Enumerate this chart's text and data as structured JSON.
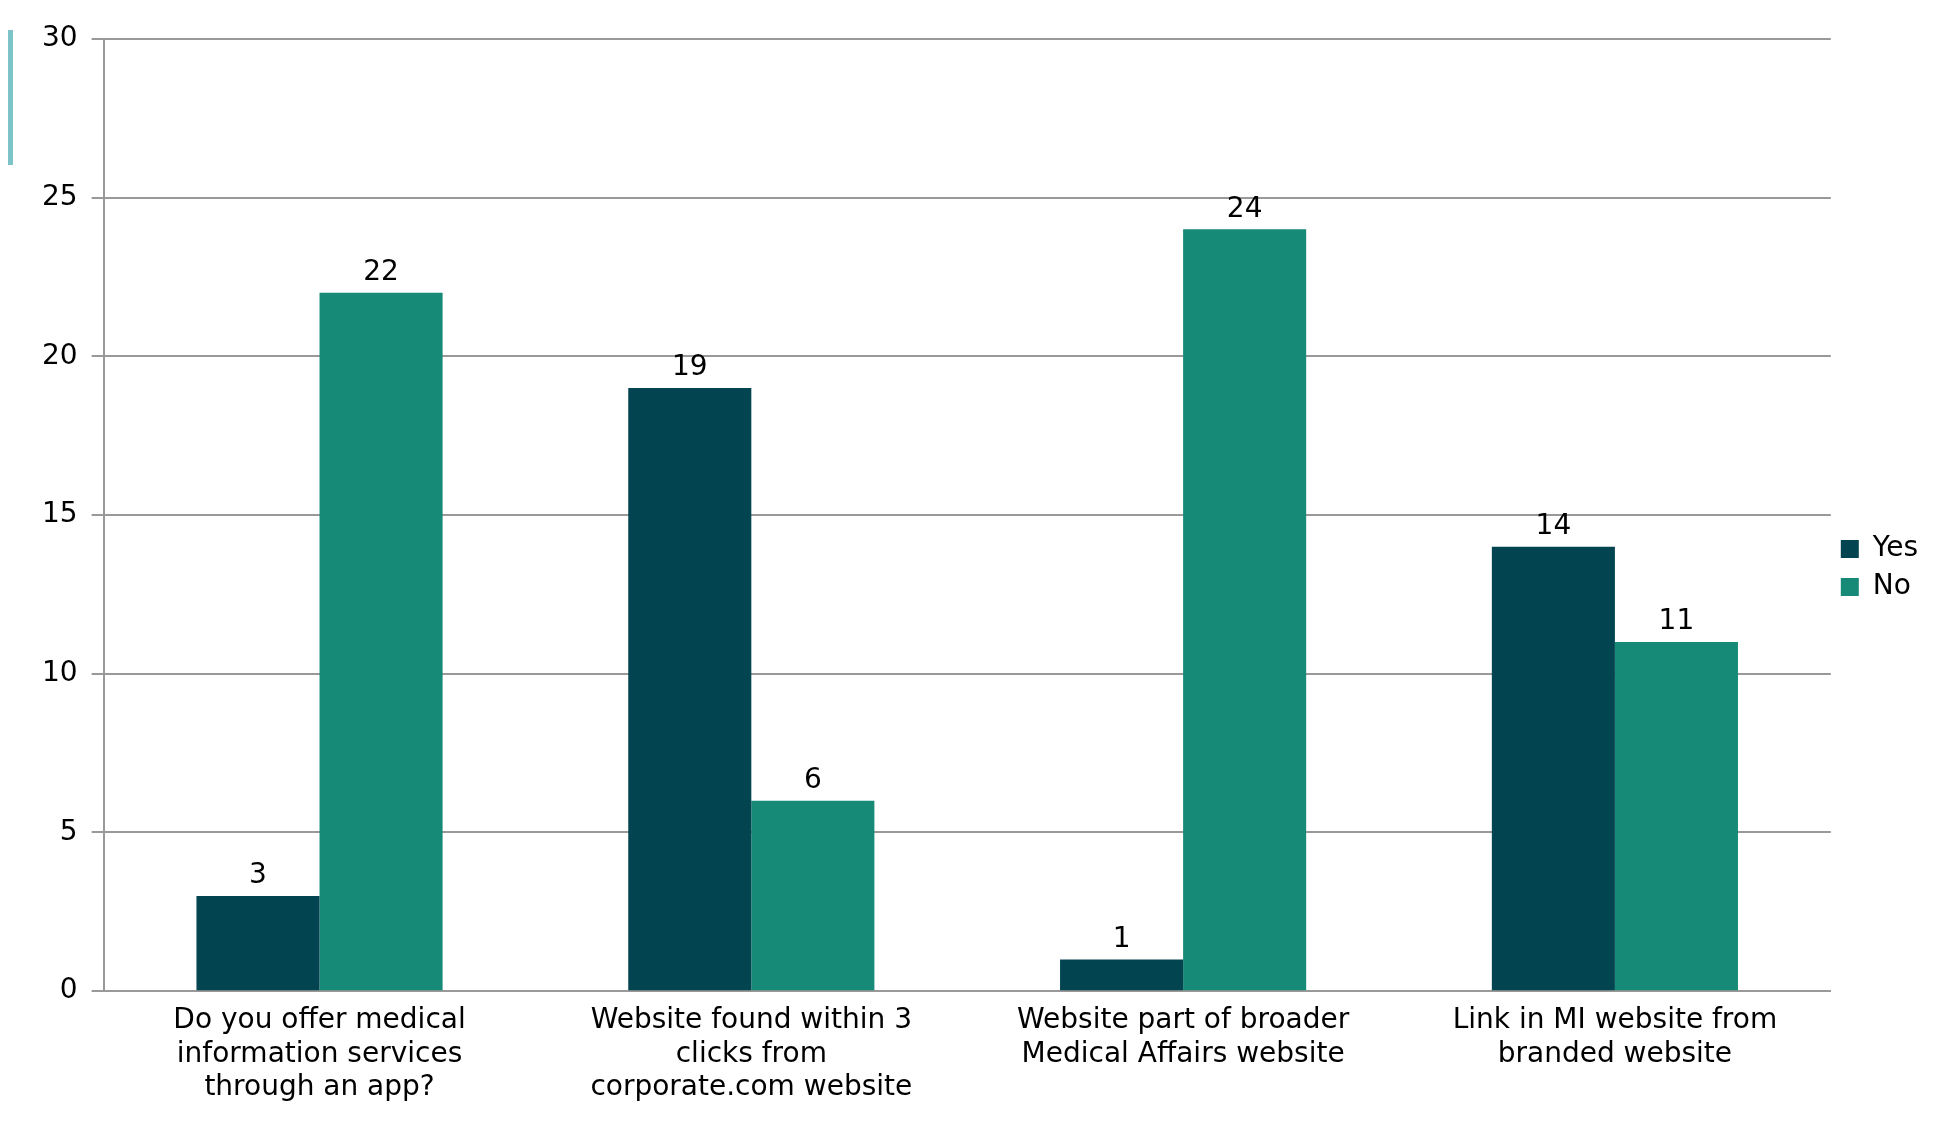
{
  "chart_data": {
    "type": "bar",
    "categories": [
      "Do you offer medical information services through an app?",
      "Website found within 3 clicks from corporate.com website",
      "Website part of broader Medical Affairs website",
      "Link in MI website from branded website"
    ],
    "series": [
      {
        "name": "Yes",
        "color": "#024450",
        "values": [
          3,
          19,
          1,
          14
        ]
      },
      {
        "name": "No",
        "color": "#168a77",
        "values": [
          22,
          6,
          24,
          11
        ]
      }
    ],
    "ylim": [
      0,
      30
    ],
    "yticks": [
      0,
      5,
      10,
      15,
      20,
      25,
      30
    ],
    "grid": "y",
    "legend": "right",
    "data_labels": true
  }
}
